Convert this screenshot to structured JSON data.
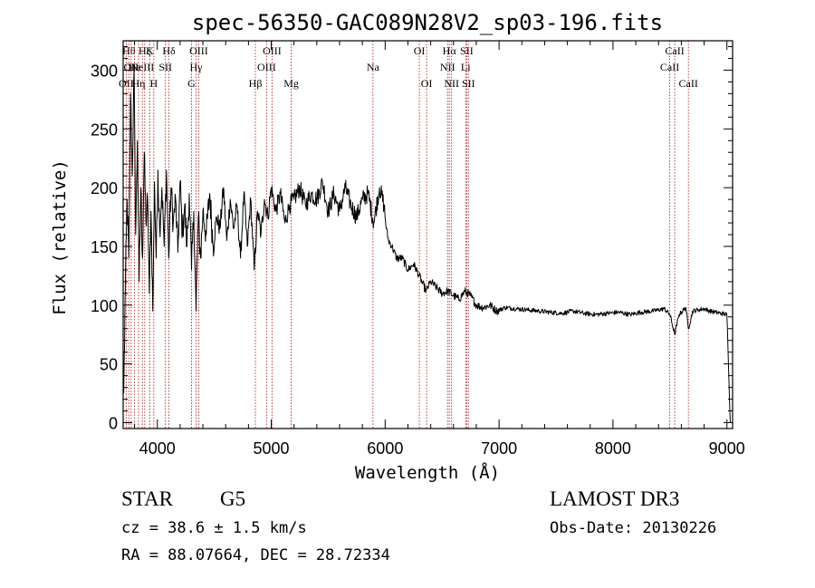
{
  "chart_data": {
    "type": "line",
    "title": "spec-56350-GAC089N28V2_sp03-196.fits",
    "xlabel": "Wavelength (Å)",
    "ylabel": "Flux (relative)",
    "xlim": [
      3700,
      9050
    ],
    "ylim": [
      -5,
      325
    ],
    "xticks": [
      4000,
      5000,
      6000,
      7000,
      8000,
      9000
    ],
    "yticks": [
      0,
      50,
      100,
      150,
      200,
      250,
      300
    ],
    "line_color": "#000000",
    "marker_color": "#b22222",
    "series": [
      {
        "name": "flux",
        "x": [
          3705,
          3720,
          3735,
          3750,
          3765,
          3780,
          3795,
          3810,
          3825,
          3840,
          3855,
          3870,
          3885,
          3900,
          3915,
          3930,
          3945,
          3960,
          3975,
          3990,
          4005,
          4020,
          4040,
          4060,
          4080,
          4100,
          4120,
          4140,
          4160,
          4180,
          4200,
          4220,
          4240,
          4260,
          4280,
          4300,
          4320,
          4340,
          4360,
          4380,
          4400,
          4430,
          4460,
          4490,
          4520,
          4550,
          4580,
          4610,
          4640,
          4670,
          4700,
          4730,
          4760,
          4790,
          4820,
          4850,
          4880,
          4910,
          4940,
          4970,
          5000,
          5040,
          5080,
          5120,
          5160,
          5200,
          5250,
          5300,
          5350,
          5400,
          5450,
          5500,
          5550,
          5600,
          5650,
          5700,
          5750,
          5800,
          5850,
          5900,
          5950,
          5990,
          6010,
          6030,
          6060,
          6100,
          6150,
          6200,
          6250,
          6300,
          6330,
          6360,
          6400,
          6450,
          6500,
          6550,
          6600,
          6650,
          6700,
          6750,
          6800,
          6860,
          6920,
          6980,
          7050,
          7150,
          7250,
          7350,
          7450,
          7550,
          7650,
          7750,
          7850,
          7950,
          8050,
          8150,
          8250,
          8350,
          8450,
          8500,
          8542,
          8580,
          8640,
          8662,
          8700,
          8750,
          8800,
          8850,
          8900,
          8950,
          9000,
          9030
        ],
        "values": [
          25,
          120,
          190,
          140,
          280,
          210,
          300,
          160,
          240,
          120,
          200,
          140,
          230,
          170,
          190,
          110,
          180,
          95,
          205,
          140,
          215,
          165,
          200,
          150,
          215,
          140,
          200,
          170,
          190,
          145,
          205,
          160,
          185,
          150,
          195,
          130,
          180,
          95,
          175,
          140,
          180,
          160,
          195,
          150,
          175,
          165,
          200,
          155,
          190,
          165,
          185,
          140,
          195,
          150,
          190,
          130,
          180,
          160,
          190,
          175,
          200,
          180,
          195,
          170,
          185,
          190,
          200,
          185,
          195,
          190,
          205,
          180,
          195,
          180,
          200,
          185,
          175,
          190,
          195,
          170,
          200,
          185,
          165,
          155,
          150,
          140,
          140,
          130,
          135,
          125,
          118,
          112,
          120,
          115,
          110,
          112,
          108,
          105,
          112,
          108,
          100,
          98,
          100,
          95,
          98,
          97,
          96,
          95,
          94,
          93,
          95,
          93,
          92,
          93,
          94,
          92,
          94,
          95,
          97,
          92,
          75,
          92,
          98,
          80,
          95,
          96,
          97,
          95,
          94,
          93,
          92,
          0
        ]
      }
    ],
    "line_markers": [
      {
        "x": 3727,
        "label": "OII",
        "row": 3
      },
      {
        "x": 3750,
        "label": "Hθ",
        "row": 1
      },
      {
        "x": 3770,
        "label": "OII",
        "row": 2
      },
      {
        "x": 3800,
        "label": "He",
        "row": 2
      },
      {
        "x": 3835,
        "label": "Hη",
        "row": 3
      },
      {
        "x": 3869,
        "label": "NeIII",
        "row": 2
      },
      {
        "x": 3889,
        "label": "Hζ",
        "row": 1
      },
      {
        "x": 3934,
        "label": "K",
        "row": 1
      },
      {
        "x": 3969,
        "label": "H",
        "row": 3
      },
      {
        "x": 4071,
        "label": "SII",
        "row": 2
      },
      {
        "x": 4102,
        "label": "Hδ",
        "row": 1
      },
      {
        "x": 4300,
        "label": "G",
        "row": 3
      },
      {
        "x": 4340,
        "label": "Hγ",
        "row": 2
      },
      {
        "x": 4363,
        "label": "OIII",
        "row": 1
      },
      {
        "x": 4861,
        "label": "Hβ",
        "row": 3
      },
      {
        "x": 4959,
        "label": "OIII",
        "row": 2
      },
      {
        "x": 5007,
        "label": "OIII",
        "row": 1
      },
      {
        "x": 5175,
        "label": "Mg",
        "row": 3
      },
      {
        "x": 5893,
        "label": "Na",
        "row": 2
      },
      {
        "x": 6300,
        "label": "OI",
        "row": 1
      },
      {
        "x": 6364,
        "label": "OI",
        "row": 3
      },
      {
        "x": 6548,
        "label": "NII",
        "row": 2
      },
      {
        "x": 6563,
        "label": "Hα",
        "row": 1
      },
      {
        "x": 6583,
        "label": "NII",
        "row": 3
      },
      {
        "x": 6707,
        "label": "Li",
        "row": 2
      },
      {
        "x": 6716,
        "label": "SII",
        "row": 1
      },
      {
        "x": 6731,
        "label": "SII",
        "row": 3
      },
      {
        "x": 8498,
        "label": "CaII",
        "row": 2
      },
      {
        "x": 8542,
        "label": "CaII",
        "row": 1
      },
      {
        "x": 8662,
        "label": "CaII",
        "row": 3
      }
    ]
  },
  "info": {
    "class": "STAR",
    "subclass": "G5",
    "survey": "LAMOST DR3",
    "cz": "cz = 38.6 ± 1.5 km/s",
    "obs_date": "Obs-Date: 20130226",
    "coords": "RA =  88.07664, DEC =  28.72334"
  }
}
